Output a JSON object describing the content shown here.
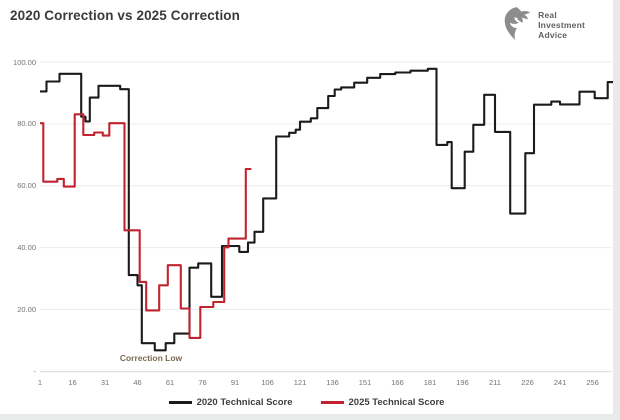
{
  "page": {
    "title": "2020 Correction vs 2025 Correction"
  },
  "logo": {
    "line1": "Real",
    "line2": "Investment",
    "line3": "Advice"
  },
  "colors": {
    "series_2020": "#1b1b1b",
    "series_2025": "#c0242e",
    "gridline": "#ececec",
    "axis_line": "#d9d9d9",
    "tick_text": "#737373",
    "title_text": "#3a3a3a",
    "annotation_text": "#7a6a50",
    "logo_gray": "#8d8d8d"
  },
  "chart_data": {
    "type": "line",
    "subtype": "step",
    "title": "2020 Correction vs 2025 Correction",
    "xlabel": "",
    "ylabel": "",
    "grid": true,
    "legend_position": "bottom",
    "x_range": [
      1,
      265
    ],
    "ylim": [
      0,
      103
    ],
    "x_ticks": [
      1,
      16,
      31,
      46,
      61,
      76,
      91,
      106,
      121,
      136,
      151,
      166,
      181,
      196,
      211,
      226,
      241,
      256
    ],
    "y_ticks": [
      {
        "value": 100,
        "label": "100.00"
      },
      {
        "value": 80,
        "label": "80.00"
      },
      {
        "value": 60,
        "label": "60.00"
      },
      {
        "value": 40,
        "label": "40.00"
      },
      {
        "value": 20,
        "label": "20.00"
      },
      {
        "value": 0,
        "label": "-"
      }
    ],
    "annotation": {
      "text": "Correction Low",
      "near_x": 55,
      "near_y": 5
    },
    "series": [
      {
        "name": "2020 Technical Score",
        "color": "#1b1b1b",
        "step_points": [
          [
            1,
            90.5
          ],
          [
            4,
            93.7
          ],
          [
            10,
            96.2
          ],
          [
            20,
            82.3
          ],
          [
            22,
            80.8
          ],
          [
            24,
            88.5
          ],
          [
            28,
            92.3
          ],
          [
            38,
            91.2
          ],
          [
            42,
            31.1
          ],
          [
            46,
            27.8
          ],
          [
            48,
            9.1
          ],
          [
            54,
            6.8
          ],
          [
            59,
            9.1
          ],
          [
            63,
            12.2
          ],
          [
            70,
            33.5
          ],
          [
            74,
            34.9
          ],
          [
            80,
            24.1
          ],
          [
            85,
            40.5
          ],
          [
            93,
            38.6
          ],
          [
            97,
            41.6
          ],
          [
            100,
            45.1
          ],
          [
            104,
            55.9
          ],
          [
            110,
            75.9
          ],
          [
            116,
            77.1
          ],
          [
            119,
            78.1
          ],
          [
            121,
            80.7
          ],
          [
            126,
            81.8
          ],
          [
            129,
            85.1
          ],
          [
            134,
            89.0
          ],
          [
            137,
            91.1
          ],
          [
            140,
            91.8
          ],
          [
            146,
            93.3
          ],
          [
            152,
            94.9
          ],
          [
            158,
            96.1
          ],
          [
            165,
            96.6
          ],
          [
            172,
            97.2
          ],
          [
            180,
            97.8
          ],
          [
            184,
            73.2
          ],
          [
            189,
            74.1
          ],
          [
            191,
            59.2
          ],
          [
            197,
            71.0
          ],
          [
            201,
            79.7
          ],
          [
            206,
            89.4
          ],
          [
            211,
            77.4
          ],
          [
            218,
            51.0
          ],
          [
            225,
            70.5
          ],
          [
            229,
            86.2
          ],
          [
            237,
            87.2
          ],
          [
            241,
            86.3
          ],
          [
            250,
            90.4
          ],
          [
            257,
            88.3
          ],
          [
            263,
            93.5
          ],
          [
            265.5,
            93.5
          ]
        ]
      },
      {
        "name": "2025 Technical Score",
        "color": "#c0242e",
        "step_points": [
          [
            1,
            80.2
          ],
          [
            2.5,
            61.3
          ],
          [
            9,
            62.2
          ],
          [
            12,
            59.7
          ],
          [
            17,
            83.1
          ],
          [
            21,
            76.4
          ],
          [
            26,
            77.2
          ],
          [
            30,
            76.2
          ],
          [
            33,
            80.2
          ],
          [
            40,
            45.6
          ],
          [
            47,
            28.9
          ],
          [
            50,
            19.7
          ],
          [
            56,
            27.8
          ],
          [
            60,
            34.3
          ],
          [
            66,
            20.3
          ],
          [
            70,
            10.8
          ],
          [
            75,
            20.8
          ],
          [
            81,
            22.4
          ],
          [
            86,
            40.1
          ],
          [
            88,
            42.9
          ],
          [
            96,
            65.4
          ],
          [
            98.5,
            65.4
          ]
        ]
      }
    ]
  }
}
